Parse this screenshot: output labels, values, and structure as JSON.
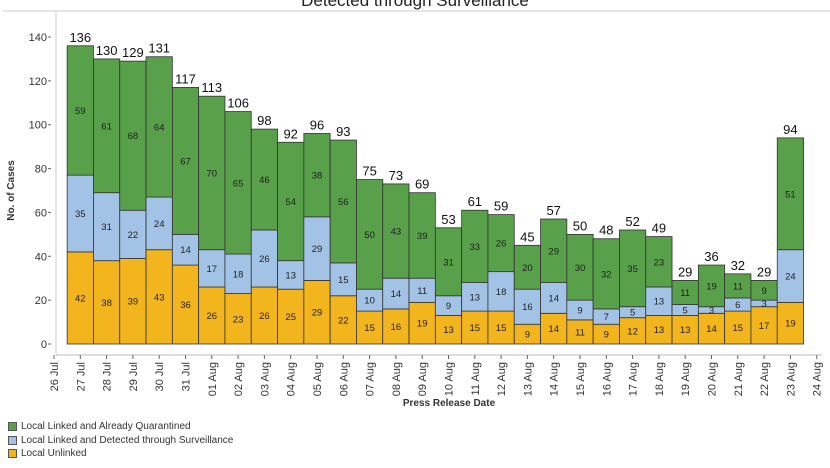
{
  "chart_data": {
    "type": "bar",
    "stacked": true,
    "title": "Detected through Surveillance",
    "xlabel": "Press Release Date",
    "ylabel": "No. of Cases",
    "ylim": [
      0,
      145
    ],
    "yticks": [
      0,
      20,
      40,
      60,
      80,
      100,
      120,
      140
    ],
    "grid": false,
    "legend_position": "bottom-left",
    "axis_ticks": [
      "26 Jul",
      "27 Jul",
      "28 Jul",
      "29 Jul",
      "30 Jul",
      "31 Jul",
      "01 Aug",
      "02 Aug",
      "03 Aug",
      "04 Aug",
      "05 Aug",
      "06 Aug",
      "07 Aug",
      "08 Aug",
      "09 Aug",
      "10 Aug",
      "11 Aug",
      "12 Aug",
      "13 Aug",
      "14 Aug",
      "15 Aug",
      "16 Aug",
      "17 Aug",
      "18 Aug",
      "19 Aug",
      "20 Aug",
      "21 Aug",
      "22 Aug",
      "23 Aug",
      "24 Aug"
    ],
    "categories": [
      "27 Jul",
      "28 Jul",
      "29 Jul",
      "30 Jul",
      "31 Jul",
      "01 Aug",
      "02 Aug",
      "03 Aug",
      "04 Aug",
      "05 Aug",
      "06 Aug",
      "07 Aug",
      "08 Aug",
      "09 Aug",
      "10 Aug",
      "11 Aug",
      "12 Aug",
      "13 Aug",
      "14 Aug",
      "15 Aug",
      "16 Aug",
      "17 Aug",
      "18 Aug",
      "19 Aug",
      "20 Aug",
      "21 Aug",
      "22 Aug",
      "23 Aug"
    ],
    "series": [
      {
        "name": "Local Unlinked",
        "color": "#f2b51e",
        "values": [
          42,
          38,
          39,
          43,
          36,
          26,
          23,
          26,
          25,
          29,
          22,
          15,
          16,
          19,
          13,
          15,
          15,
          9,
          14,
          11,
          9,
          12,
          13,
          13,
          14,
          15,
          17,
          19
        ]
      },
      {
        "name": "Local Linked and Detected through Surveillance",
        "color": "#a3c3e6",
        "values": [
          35,
          31,
          22,
          24,
          14,
          17,
          18,
          26,
          13,
          29,
          15,
          10,
          14,
          11,
          9,
          13,
          18,
          16,
          14,
          9,
          7,
          5,
          13,
          5,
          3,
          6,
          3,
          24
        ]
      },
      {
        "name": "Local Linked and Already Quarantined",
        "color": "#58a04a",
        "values": [
          59,
          61,
          68,
          64,
          67,
          70,
          65,
          46,
          54,
          38,
          56,
          50,
          43,
          39,
          31,
          33,
          26,
          20,
          29,
          30,
          32,
          35,
          23,
          11,
          19,
          11,
          9,
          51
        ]
      }
    ],
    "totals": [
      136,
      130,
      129,
      131,
      117,
      113,
      106,
      98,
      92,
      96,
      93,
      75,
      73,
      69,
      53,
      61,
      59,
      45,
      57,
      50,
      48,
      52,
      49,
      29,
      36,
      32,
      29,
      94
    ]
  }
}
